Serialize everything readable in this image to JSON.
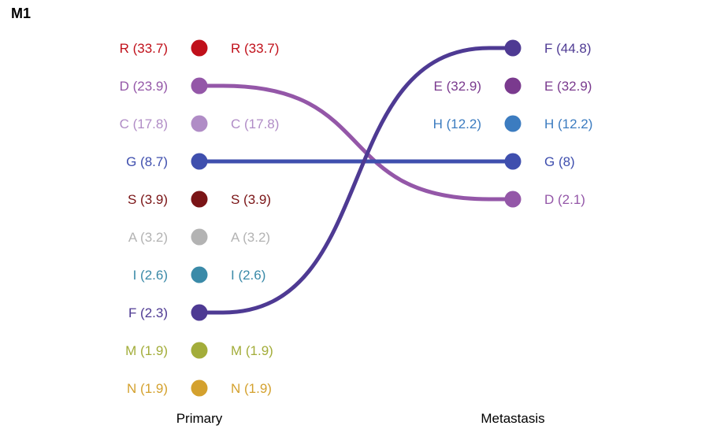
{
  "chart_data": {
    "type": "slopegraph",
    "title": "M1",
    "columns": {
      "left": "Primary",
      "right": "Metastasis"
    },
    "primary": [
      {
        "code": "R",
        "value": 33.7,
        "label": "R (33.7)",
        "color": "#c0101a"
      },
      {
        "code": "D",
        "value": 23.9,
        "label": "D (23.9)",
        "color": "#9457a8"
      },
      {
        "code": "C",
        "value": 17.8,
        "label": "C (17.8)",
        "color": "#b08cc6"
      },
      {
        "code": "G",
        "value": 8.7,
        "label": "G (8.7)",
        "color": "#3f4fae"
      },
      {
        "code": "S",
        "value": 3.9,
        "label": "S (3.9)",
        "color": "#7a1416"
      },
      {
        "code": "A",
        "value": 3.2,
        "label": "A (3.2)",
        "color": "#b3b3b3"
      },
      {
        "code": "I",
        "value": 2.6,
        "label": "I (2.6)",
        "color": "#3a8aa8"
      },
      {
        "code": "F",
        "value": 2.3,
        "label": "F (2.3)",
        "color": "#4e3a93"
      },
      {
        "code": "M",
        "value": 1.9,
        "label": "M (1.9)",
        "color": "#a3ad3a"
      },
      {
        "code": "N",
        "value": 1.9,
        "label": "N (1.9)",
        "color": "#d4a12e"
      }
    ],
    "metastasis": [
      {
        "code": "F",
        "value": 44.8,
        "label": "F (44.8)",
        "color": "#4e3a93"
      },
      {
        "code": "E",
        "value": 32.9,
        "label": "E (32.9)",
        "color": "#7a3a8e"
      },
      {
        "code": "H",
        "value": 12.2,
        "label": "H (12.2)",
        "color": "#3c7cc0"
      },
      {
        "code": "G",
        "value": 8,
        "label": "G (8)",
        "color": "#3f4fae"
      },
      {
        "code": "D",
        "value": 2.1,
        "label": "D (2.1)",
        "color": "#9457a8"
      }
    ],
    "links": [
      {
        "code": "D",
        "color": "#9457a8"
      },
      {
        "code": "G",
        "color": "#3f4fae"
      },
      {
        "code": "F",
        "color": "#4e3a93"
      }
    ]
  }
}
